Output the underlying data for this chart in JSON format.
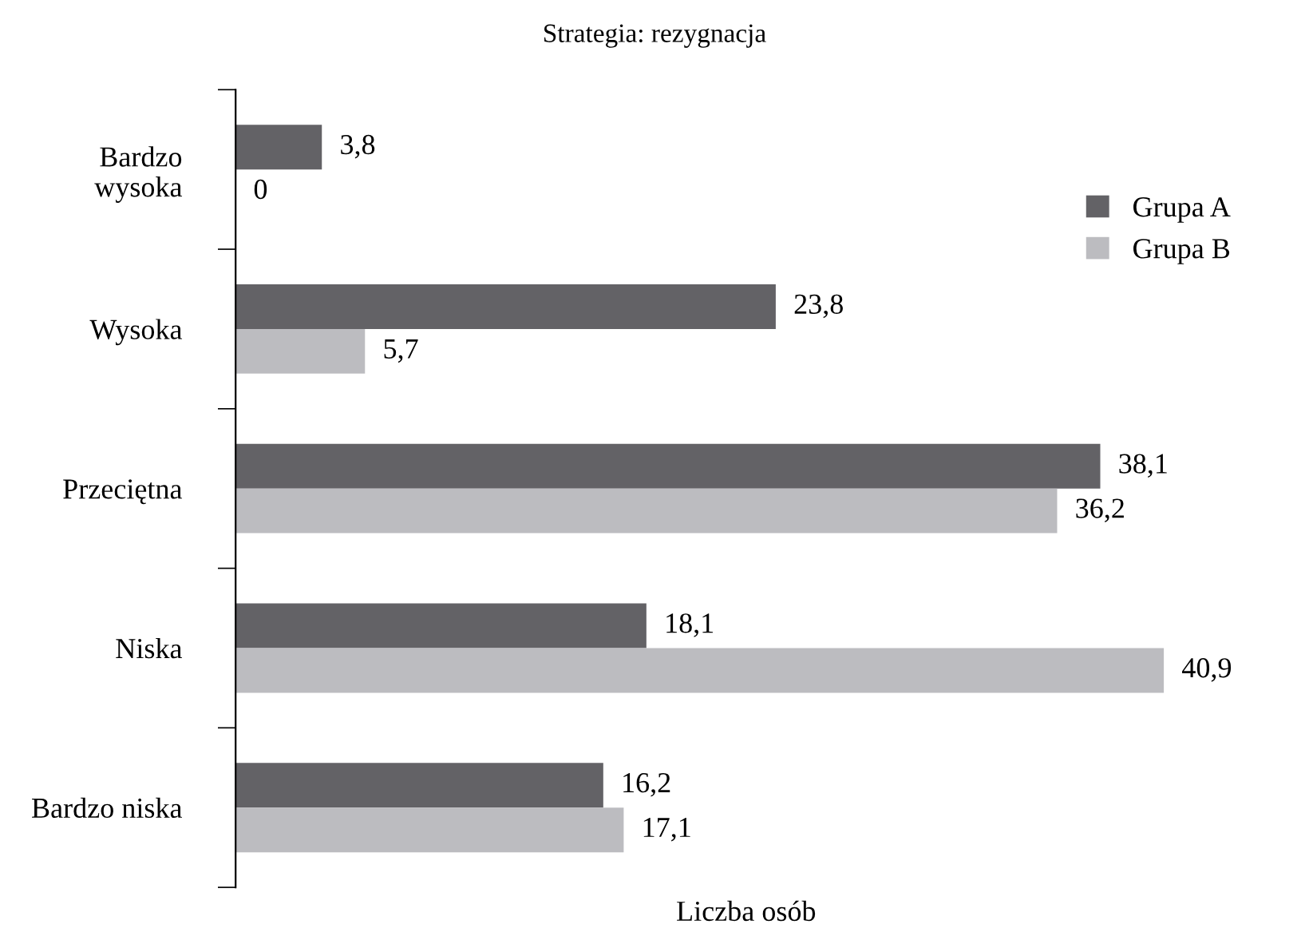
{
  "chart_data": {
    "type": "bar",
    "orientation": "horizontal",
    "title": "Strategia: rezygnacja",
    "xlabel": "Liczba osób",
    "categories": [
      "Bardzo\nwysoka",
      "Wysoka",
      "Przeciętna",
      "Niska",
      "Bardzo niska"
    ],
    "series": [
      {
        "name": "Grupa A",
        "color": "#636266",
        "values": [
          3.8,
          23.8,
          38.1,
          18.1,
          16.2
        ],
        "value_labels": [
          "3,8",
          "23,8",
          "38,1",
          "18,1",
          "16,2"
        ]
      },
      {
        "name": "Grupa B",
        "color": "#bcbcc0",
        "values": [
          0,
          5.7,
          36.2,
          40.9,
          17.1
        ],
        "value_labels": [
          "0",
          "5,7",
          "36,2",
          "40,9",
          "17,1"
        ]
      }
    ],
    "legend": "top right",
    "grid": false,
    "tick_labels": "y"
  }
}
